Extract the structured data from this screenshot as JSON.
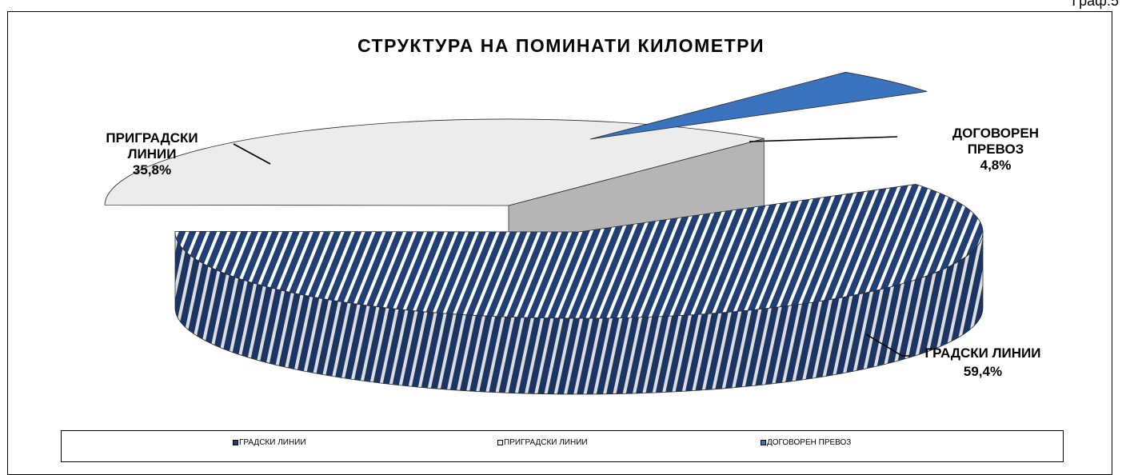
{
  "corner_label": "Граф.5",
  "chart_data": {
    "type": "pie",
    "title": "СТРУКТУРА НА ПОМИНАТИ КИЛОМЕТРИ",
    "categories": [
      "ГРАДСКИ ЛИНИИ",
      "ПРИГРАДСКИ ЛИНИИ",
      "ДОГОВОРЕН ПРЕВОЗ"
    ],
    "values": [
      59.4,
      35.8,
      4.8
    ],
    "value_labels": [
      "59,4%",
      "35,8%",
      "4,8%"
    ],
    "slice_labels": [
      [
        "ГРАДСКИ ЛИНИИ",
        "59,4%"
      ],
      [
        "ПРИГРАДСКИ",
        "ЛИНИИ",
        "35,8%"
      ],
      [
        "ДОГОВОРЕН",
        "ПРЕВОЗ",
        "4,8%"
      ]
    ],
    "legend": {
      "position": "bottom"
    },
    "style": "3d-exploded",
    "colors": [
      "#1f3f75",
      "#ececec",
      "#3a73bd"
    ],
    "grid": false
  }
}
